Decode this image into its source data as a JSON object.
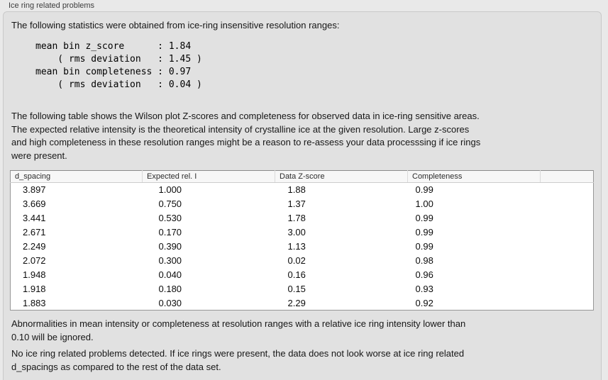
{
  "panel": {
    "title": "Ice ring related problems"
  },
  "intro": "The following statistics were obtained from ice-ring insensitive resolution ranges:",
  "stats_block": [
    "mean bin z_score      : 1.84",
    "    ( rms deviation   : 1.45 )",
    "mean bin completeness : 0.97",
    "    ( rms deviation   : 0.04 )"
  ],
  "stats": {
    "mean_bin_z_score": "1.84",
    "z_score_rms_deviation": "1.45",
    "mean_bin_completeness": "0.97",
    "completeness_rms_deviation": "0.04"
  },
  "description_lines": [
    "The following table shows the Wilson plot Z-scores and completeness for observed data in ice-ring sensitive areas.",
    "The expected relative intensity is the theoretical intensity of crystalline ice at the given resolution. Large z-scores",
    "and high completeness in these resolution ranges might be a reason to re-assess your data processsing if ice rings",
    "were present."
  ],
  "table": {
    "columns": [
      "d_spacing",
      "Expected rel. I",
      "Data Z-score",
      "Completeness",
      ""
    ],
    "rows": [
      [
        "3.897",
        "1.000",
        "1.88",
        "0.99"
      ],
      [
        "3.669",
        "0.750",
        "1.37",
        "1.00"
      ],
      [
        "3.441",
        "0.530",
        "1.78",
        "0.99"
      ],
      [
        "2.671",
        "0.170",
        "3.00",
        "0.99"
      ],
      [
        "2.249",
        "0.390",
        "1.13",
        "0.99"
      ],
      [
        "2.072",
        "0.300",
        "0.02",
        "0.98"
      ],
      [
        "1.948",
        "0.040",
        "0.16",
        "0.96"
      ],
      [
        "1.918",
        "0.180",
        "0.15",
        "0.93"
      ],
      [
        "1.883",
        "0.030",
        "2.29",
        "0.92"
      ]
    ]
  },
  "note_lines": [
    "Abnormalities in mean intensity or completeness at resolution ranges with a relative ice ring intensity lower than",
    "0.10 will be ignored."
  ],
  "conclusion_lines": [
    "No ice ring related problems detected. If ice rings were present, the data does not look worse at ice ring related",
    "d_spacings as compared to the rest of the data set."
  ],
  "colors": {
    "panel_background": "#e9e9e9",
    "groupbox_background": "#e1e1e1",
    "groupbox_border": "#c9c9c9",
    "table_background": "#ffffff",
    "table_border": "#979797",
    "table_header_background": "#f7f7f7",
    "text": "#161616"
  }
}
